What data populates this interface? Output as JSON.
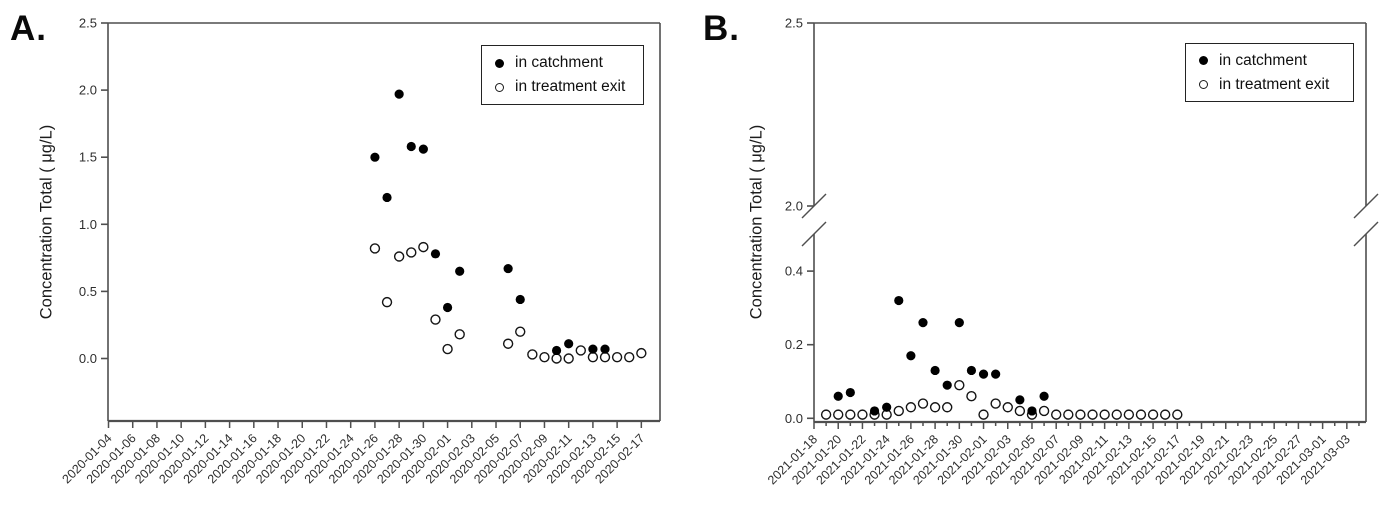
{
  "figure": {
    "background": "#ffffff",
    "marker_color": "#000000",
    "axis_color": "#4f4f4f",
    "text_color": "#2e2e2e"
  },
  "chart_data": [
    {
      "type": "scatter",
      "panel_letter": "A.",
      "title": "",
      "xlabel": "",
      "ylabel": "Concentration Total ( μg/L)",
      "ylim": [
        -0.46,
        2.5
      ],
      "grid": false,
      "y_ticks": [
        "0.0",
        "0.5",
        "1.0",
        "1.5",
        "2.0",
        "2.5"
      ],
      "x_tick_labels": [
        "2020-01-04",
        "2020-01-06",
        "2020-01-08",
        "2020-01-10",
        "2020-01-12",
        "2020-01-14",
        "2020-01-16",
        "2020-01-18",
        "2020-01-20",
        "2020-01-22",
        "2020-01-24",
        "2020-01-26",
        "2020-01-28",
        "2020-01-30",
        "2020-02-01",
        "2020-02-03",
        "2020-02-05",
        "2020-02-07",
        "2020-02-09",
        "2020-02-11",
        "2020-02-13",
        "2020-02-15",
        "2020-02-17"
      ],
      "x_tick_interval_days": 2,
      "legend": {
        "position": "top-right",
        "entries": [
          {
            "marker": "filled-circle",
            "label": "in catchment"
          },
          {
            "marker": "open-circle",
            "label": "in treatment exit"
          }
        ]
      },
      "series": [
        {
          "name": "in catchment",
          "marker": "filled-circle",
          "color": "#000000",
          "points": [
            [
              "2020-01-26",
              1.5
            ],
            [
              "2020-01-27",
              1.2
            ],
            [
              "2020-01-28",
              1.97
            ],
            [
              "2020-01-29",
              1.58
            ],
            [
              "2020-01-30",
              1.56
            ],
            [
              "2020-01-31",
              0.78
            ],
            [
              "2020-02-01",
              0.38
            ],
            [
              "2020-02-02",
              0.65
            ],
            [
              "2020-02-06",
              0.67
            ],
            [
              "2020-02-07",
              0.44
            ],
            [
              "2020-02-10",
              0.06
            ],
            [
              "2020-02-11",
              0.11
            ],
            [
              "2020-02-13",
              0.07
            ],
            [
              "2020-02-14",
              0.07
            ]
          ]
        },
        {
          "name": "in treatment exit",
          "marker": "open-circle",
          "color": "#000000",
          "points": [
            [
              "2020-01-26",
              0.82
            ],
            [
              "2020-01-27",
              0.42
            ],
            [
              "2020-01-28",
              0.76
            ],
            [
              "2020-01-29",
              0.79
            ],
            [
              "2020-01-30",
              0.83
            ],
            [
              "2020-01-31",
              0.29
            ],
            [
              "2020-02-01",
              0.07
            ],
            [
              "2020-02-02",
              0.18
            ],
            [
              "2020-02-06",
              0.11
            ],
            [
              "2020-02-07",
              0.2
            ],
            [
              "2020-02-08",
              0.03
            ],
            [
              "2020-02-09",
              0.01
            ],
            [
              "2020-02-10",
              0.0
            ],
            [
              "2020-02-11",
              0.0
            ],
            [
              "2020-02-12",
              0.06
            ],
            [
              "2020-02-13",
              0.01
            ],
            [
              "2020-02-14",
              0.01
            ],
            [
              "2020-02-15",
              0.01
            ],
            [
              "2020-02-16",
              0.01
            ],
            [
              "2020-02-17",
              0.04
            ]
          ]
        }
      ]
    },
    {
      "type": "scatter",
      "panel_letter": "B.",
      "title": "",
      "xlabel": "",
      "ylabel": "Concentration Total ( μg/L)",
      "grid": false,
      "axis_break": {
        "lower_range": [
          0.0,
          0.45
        ],
        "upper_range": [
          2.0,
          2.5
        ],
        "y_ticks_lower": [
          "0.0",
          "0.2",
          "0.4"
        ],
        "y_ticks_upper": [
          "2.0",
          "2.5"
        ]
      },
      "x_tick_labels": [
        "2021-01-18",
        "2021-01-20",
        "2021-01-22",
        "2021-01-24",
        "2021-01-26",
        "2021-01-28",
        "2021-01-30",
        "2021-02-01",
        "2021-02-03",
        "2021-02-05",
        "2021-02-07",
        "2021-02-09",
        "2021-02-11",
        "2021-02-13",
        "2021-02-15",
        "2021-02-17",
        "2021-02-19",
        "2021-02-21",
        "2021-02-23",
        "2021-02-25",
        "2021-02-27",
        "2021-03-01",
        "2021-03-03"
      ],
      "x_tick_interval_days": 2,
      "legend": {
        "position": "top-right",
        "entries": [
          {
            "marker": "filled-circle",
            "label": "in catchment"
          },
          {
            "marker": "open-circle",
            "label": "in treatment exit"
          }
        ]
      },
      "series": [
        {
          "name": "in catchment",
          "marker": "filled-circle",
          "color": "#000000",
          "points": [
            [
              "2021-01-20",
              0.06
            ],
            [
              "2021-01-21",
              0.07
            ],
            [
              "2021-01-23",
              0.02
            ],
            [
              "2021-01-24",
              0.03
            ],
            [
              "2021-01-25",
              0.32
            ],
            [
              "2021-01-26",
              0.17
            ],
            [
              "2021-01-27",
              0.26
            ],
            [
              "2021-01-28",
              0.13
            ],
            [
              "2021-01-29",
              0.09
            ],
            [
              "2021-01-30",
              0.26
            ],
            [
              "2021-01-31",
              0.13
            ],
            [
              "2021-02-01",
              0.12
            ],
            [
              "2021-02-02",
              0.12
            ],
            [
              "2021-02-04",
              0.05
            ],
            [
              "2021-02-05",
              0.02
            ],
            [
              "2021-02-06",
              0.06
            ]
          ]
        },
        {
          "name": "in treatment exit",
          "marker": "open-circle",
          "color": "#000000",
          "points": [
            [
              "2021-01-19",
              0.01
            ],
            [
              "2021-01-20",
              0.01
            ],
            [
              "2021-01-21",
              0.01
            ],
            [
              "2021-01-22",
              0.01
            ],
            [
              "2021-01-23",
              0.01
            ],
            [
              "2021-01-24",
              0.01
            ],
            [
              "2021-01-25",
              0.02
            ],
            [
              "2021-01-26",
              0.03
            ],
            [
              "2021-01-27",
              0.04
            ],
            [
              "2021-01-28",
              0.03
            ],
            [
              "2021-01-29",
              0.03
            ],
            [
              "2021-01-30",
              0.09
            ],
            [
              "2021-01-31",
              0.06
            ],
            [
              "2021-02-01",
              0.01
            ],
            [
              "2021-02-02",
              0.04
            ],
            [
              "2021-02-03",
              0.03
            ],
            [
              "2021-02-04",
              0.02
            ],
            [
              "2021-02-05",
              0.01
            ],
            [
              "2021-02-06",
              0.02
            ],
            [
              "2021-02-07",
              0.01
            ],
            [
              "2021-02-08",
              0.01
            ],
            [
              "2021-02-09",
              0.01
            ],
            [
              "2021-02-10",
              0.01
            ],
            [
              "2021-02-11",
              0.01
            ],
            [
              "2021-02-12",
              0.01
            ],
            [
              "2021-02-13",
              0.01
            ],
            [
              "2021-02-14",
              0.01
            ],
            [
              "2021-02-15",
              0.01
            ],
            [
              "2021-02-16",
              0.01
            ],
            [
              "2021-02-17",
              0.01
            ]
          ]
        }
      ]
    }
  ]
}
